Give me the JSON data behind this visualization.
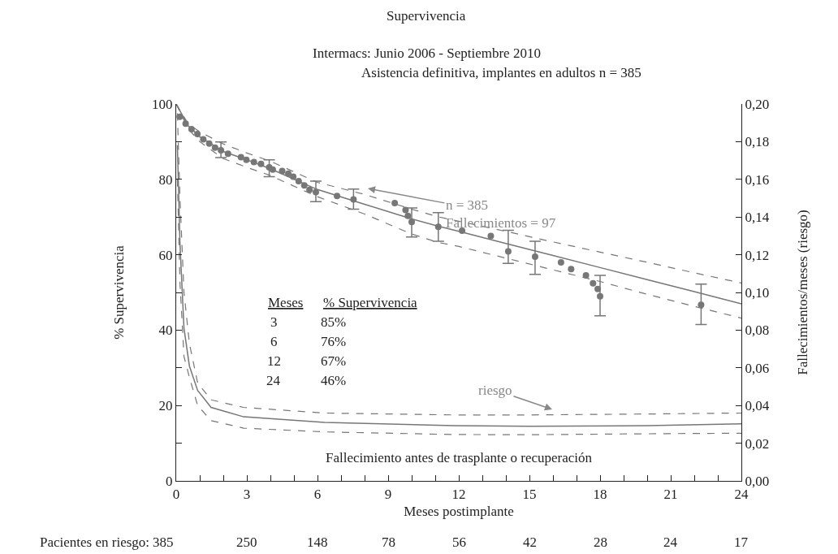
{
  "chart_data": {
    "type": "line",
    "title": "Supervivencia",
    "subtitle": "Intermacs: Junio 2006 - Septiembre 2010\nAsistencia definitiva, implantes en adultos n = 385",
    "xlabel": "Meses postimplante",
    "ylabel": "% Supervivencia",
    "y2label": "Fallecimientos/meses (riesgo)",
    "xlim": [
      0,
      24
    ],
    "xticks": [
      0,
      {
        "value": 1,
        "label": null
      },
      {
        "value": 2,
        "label": null
      },
      3,
      {
        "value": 4,
        "label": null
      },
      {
        "value": 5,
        "label": null
      },
      6,
      {
        "value": 7,
        "label": null
      },
      {
        "value": 8,
        "label": null
      },
      9,
      {
        "value": 10,
        "label": null
      },
      {
        "value": 11,
        "label": null
      },
      12,
      {
        "value": 13,
        "label": null
      },
      {
        "value": 14,
        "label": null
      },
      15,
      {
        "value": 16,
        "label": null
      },
      {
        "value": 17,
        "label": null
      },
      18,
      {
        "value": 19,
        "label": null
      },
      {
        "value": 20,
        "label": null
      },
      21,
      {
        "value": 22,
        "label": null
      },
      {
        "value": 23,
        "label": null
      },
      24
    ],
    "ylim": [
      0,
      100
    ],
    "yticks": [
      0,
      {
        "value": 10,
        "label": null
      },
      20,
      {
        "value": 30,
        "label": null
      },
      40,
      {
        "value": 50,
        "label": null
      },
      60,
      {
        "value": 70,
        "label": null
      },
      80,
      {
        "value": 90,
        "label": null
      },
      100
    ],
    "y2lim": [
      0,
      0.2
    ],
    "y2ticks": [
      {
        "value": 0,
        "label": "0,00"
      },
      {
        "value": 0.02,
        "label": "0,02"
      },
      {
        "value": 0.04,
        "label": "0,04"
      },
      {
        "value": 0.06,
        "label": "0,06"
      },
      {
        "value": 0.08,
        "label": "0,08"
      },
      {
        "value": 0.1,
        "label": "0,10"
      },
      {
        "value": 0.12,
        "label": "0,12"
      },
      {
        "value": 0.14,
        "label": "0,14"
      },
      {
        "value": 0.16,
        "label": "0,16"
      },
      {
        "value": 0.18,
        "label": "0,18"
      },
      {
        "value": 0.2,
        "label": "0,20"
      }
    ],
    "grid": false,
    "series": [
      {
        "type": "scatter",
        "color": "#777777",
        "marker": "circle",
        "x": [
          0.15,
          0.4,
          0.65,
          0.9,
          1.15,
          1.4,
          1.65,
          1.9,
          2.2,
          2.75,
          2.98,
          3.3,
          3.6,
          3.95,
          4.1,
          4.5,
          4.76,
          4.97,
          5.2,
          5.44,
          5.66,
          5.93,
          6.83,
          7.53,
          9.28,
          9.74,
          9.84,
          10.0,
          11.13,
          12.14,
          13.36,
          14.1,
          15.24,
          16.34,
          16.77,
          17.4,
          17.7,
          17.9,
          18.0,
          22.29
        ],
        "values": [
          96.6,
          94.8,
          93.3,
          92,
          90.6,
          89.5,
          88.4,
          87.7,
          86.8,
          85.9,
          85.2,
          84.6,
          84.1,
          83.2,
          82.6,
          82.2,
          81.5,
          80.7,
          79.5,
          78.4,
          77.2,
          76.6,
          75.6,
          74.7,
          73.7,
          71.9,
          70.3,
          68.7,
          67.4,
          66.4,
          65.0,
          60.9,
          59.5,
          58,
          56.2,
          54.5,
          52.4,
          50.9,
          49,
          46.7
        ],
        "errors": [
          null,
          null,
          null,
          null,
          null,
          null,
          null,
          [
            85.8,
            89.9
          ],
          null,
          null,
          null,
          null,
          null,
          [
            80.7,
            85.2
          ],
          null,
          null,
          null,
          null,
          null,
          null,
          null,
          [
            74.1,
            79.5
          ],
          null,
          [
            72.1,
            77.4
          ],
          null,
          null,
          null,
          [
            64.7,
            72.4
          ],
          [
            63.6,
            71.2
          ],
          null,
          null,
          [
            57.7,
            66.5
          ],
          [
            54.8,
            63.6
          ],
          null,
          null,
          null,
          null,
          null,
          [
            43.8,
            54.5
          ],
          [
            41.5,
            52.2
          ]
        ]
      },
      {
        "color": "#777777",
        "line_style": "solid",
        "x": [
          0,
          0.5,
          1,
          2,
          3,
          4,
          6,
          8,
          10,
          11.1,
          12,
          14,
          16,
          18,
          20,
          22,
          24
        ],
        "values": [
          100,
          94.3,
          91.3,
          87.4,
          85.2,
          82.8,
          77.3,
          73.4,
          69.5,
          67.6,
          66.2,
          63,
          59.8,
          56.6,
          53.4,
          50.2,
          47
        ]
      },
      {
        "color": "#777777",
        "line_style": "dashed",
        "x": [
          0,
          0.5,
          1,
          2,
          3,
          4,
          6,
          8,
          10,
          11.1,
          12,
          14,
          16,
          18,
          20,
          22,
          24
        ],
        "values": [
          100,
          94.8,
          92.6,
          89.4,
          87,
          84.8,
          79.2,
          76,
          72.1,
          70.1,
          68.9,
          66.2,
          63.4,
          60.7,
          58,
          55.2,
          52.5
        ]
      },
      {
        "color": "#777777",
        "line_style": "dashed",
        "x": [
          0,
          0.5,
          1,
          2,
          3,
          4,
          6,
          8,
          10,
          11.1,
          12,
          14,
          16,
          18,
          20,
          22,
          24
        ],
        "values": [
          100,
          93.5,
          90,
          85.5,
          83.2,
          81,
          75.4,
          70.8,
          65.5,
          63.3,
          62.2,
          59.1,
          56,
          52.9,
          49.5,
          46.3,
          43.2
        ]
      },
      {
        "color": "#777777",
        "line_style": "solid",
        "axis": "y2",
        "x": [
          0.05,
          0.16,
          0.33,
          0.56,
          0.91,
          1.48,
          2.86,
          6.3,
          11.8,
          15,
          20,
          24
        ],
        "values": [
          0.178,
          0.126,
          0.081,
          0.061,
          0.048,
          0.039,
          0.034,
          0.031,
          0.0293,
          0.029,
          0.0293,
          0.0303
        ]
      },
      {
        "color": "#777777",
        "line_style": "dashed",
        "axis": "y2",
        "x": [
          0.05,
          0.16,
          0.33,
          0.56,
          0.91,
          1.48,
          2.86,
          6.3,
          11.8,
          15,
          20,
          24
        ],
        "values": [
          0.195,
          0.15,
          0.1,
          0.073,
          0.052,
          0.043,
          0.039,
          0.036,
          0.035,
          0.035,
          0.0355,
          0.036
        ]
      },
      {
        "color": "#777777",
        "line_style": "dashed",
        "axis": "y2",
        "x": [
          0.05,
          0.16,
          0.33,
          0.56,
          0.91,
          1.48,
          2.86,
          6.3,
          11.8,
          15,
          20,
          24
        ],
        "values": [
          0.16,
          0.105,
          0.066,
          0.055,
          0.04,
          0.032,
          0.028,
          0.026,
          0.0246,
          0.0245,
          0.025,
          0.0253
        ]
      }
    ],
    "annotations": [
      "n = 385\nFallecimientos = 97",
      "riesgo",
      "Meses",
      "% Supervivencia",
      "3",
      "85%",
      "6",
      "76%",
      "12",
      "67%",
      "24",
      "46%",
      "Fallecimiento antes de trasplante o recuperación",
      "Pacientes en riesgo:",
      "385",
      "250",
      "148",
      "78",
      "56",
      "42",
      "28",
      "24",
      "17"
    ]
  }
}
